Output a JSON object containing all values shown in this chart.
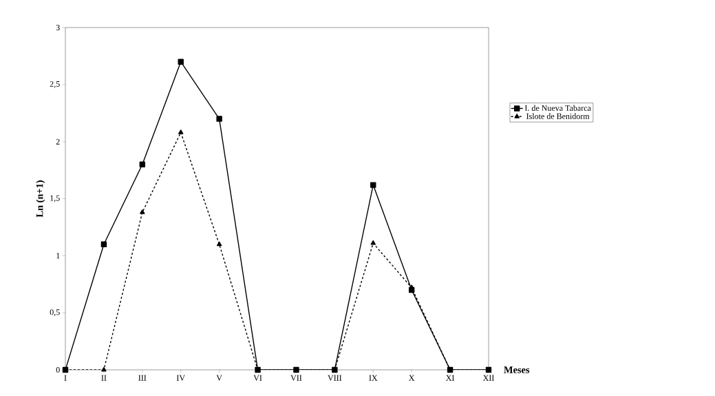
{
  "chart_data": {
    "type": "line",
    "xlabel": "Meses",
    "ylabel": "Ln (n+1)",
    "categories": [
      "I",
      "II",
      "III",
      "IV",
      "V",
      "VI",
      "VII",
      "VIII",
      "IX",
      "X",
      "XI",
      "XII"
    ],
    "series": [
      {
        "name": "I. de Nueva Tabarca",
        "color": "#000000",
        "marker": "square",
        "line_style": "solid",
        "values": [
          0,
          1.1,
          1.8,
          2.7,
          2.2,
          0,
          0,
          0,
          1.62,
          0.7,
          0,
          0
        ]
      },
      {
        "name": "Islote de Benidorm",
        "color": "#000000",
        "marker": "triangle",
        "line_style": "dashed",
        "values": [
          0,
          0,
          1.38,
          2.08,
          1.1,
          0,
          0,
          0,
          1.11,
          0.72,
          0,
          0
        ]
      }
    ],
    "ylim": [
      0,
      3
    ],
    "yticks": [
      0,
      {
        "value": 0.5,
        "label": "0,5"
      },
      1,
      {
        "value": 1.5,
        "label": "1,5"
      },
      2,
      {
        "value": 2.5,
        "label": "2,5"
      },
      3
    ],
    "grid": false,
    "legend": "right"
  }
}
